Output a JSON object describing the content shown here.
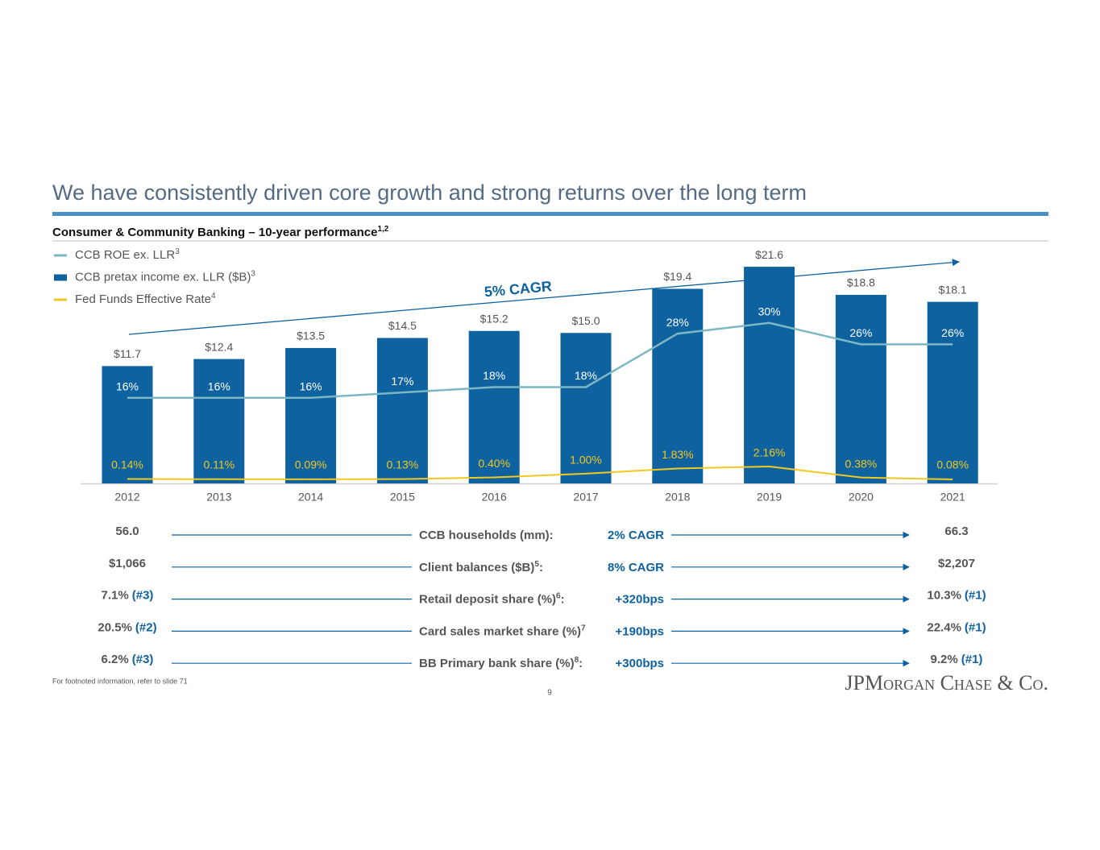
{
  "title": "We have consistently driven core growth and strong returns over the long term",
  "subtitle": {
    "text": "Consumer & Community Banking – 10-year performance",
    "sup": "1,2"
  },
  "chart_data": {
    "type": "bar-line",
    "categories": [
      "2012",
      "2013",
      "2014",
      "2015",
      "2016",
      "2017",
      "2018",
      "2019",
      "2020",
      "2021"
    ],
    "series": [
      {
        "name": "CCB ROE ex. LLR",
        "sup": "3",
        "type": "line",
        "color": "#7db7c4",
        "values": [
          16,
          16,
          16,
          17,
          18,
          18,
          28,
          30,
          26,
          26
        ],
        "value_labels": [
          "16%",
          "16%",
          "16%",
          "17%",
          "18%",
          "18%",
          "28%",
          "30%",
          "26%",
          "26%"
        ]
      },
      {
        "name": "CCB pretax income ex. LLR ($B)",
        "sup": "3",
        "type": "bar",
        "color": "#0e62a0",
        "values": [
          11.7,
          12.4,
          13.5,
          14.5,
          15.2,
          15.0,
          19.4,
          21.6,
          18.8,
          18.1
        ],
        "value_labels": [
          "$11.7",
          "$12.4",
          "$13.5",
          "$14.5",
          "$15.2",
          "$15.0",
          "$19.4",
          "$21.6",
          "$18.8",
          "$18.1"
        ]
      },
      {
        "name": "Fed Funds Effective Rate",
        "sup": "4",
        "type": "line",
        "color": "#f2c81e",
        "values": [
          0.14,
          0.11,
          0.09,
          0.13,
          0.4,
          1.0,
          1.83,
          2.16,
          0.38,
          0.08
        ],
        "value_labels": [
          "0.14%",
          "0.11%",
          "0.09%",
          "0.13%",
          "0.40%",
          "1.00%",
          "1.83%",
          "2.16%",
          "0.38%",
          "0.08%"
        ]
      }
    ],
    "annotation": "5% CAGR"
  },
  "metrics": [
    {
      "start": "56.0",
      "label": "CCB households (mm):",
      "change": "2% CAGR",
      "end": "66.3"
    },
    {
      "start": "$1,066",
      "label": "Client balances ($B)",
      "sup": "5",
      "tail": ":",
      "change": "8% CAGR",
      "end": "$2,207"
    },
    {
      "start": "7.1%",
      "start_rank": "(#3)",
      "label": "Retail deposit share (%)",
      "sup": "6",
      "tail": ":",
      "change": "+320bps",
      "end": "10.3%",
      "end_rank": "(#1)"
    },
    {
      "start": "20.5%",
      "start_rank": "(#2)",
      "label": "Card sales market share (%)",
      "sup": "7",
      "change": "+190bps",
      "end": "22.4%",
      "end_rank": "(#1)"
    },
    {
      "start": "6.2%",
      "start_rank": "(#3)",
      "label": "BB Primary bank share (%)",
      "sup": "8",
      "tail": ":",
      "change": "+300bps",
      "end": "9.2%",
      "end_rank": "(#1)"
    }
  ],
  "footnote": "For footnoted information, refer to slide 71",
  "page_number": "9",
  "logo": "JPMorgan Chase & Co."
}
